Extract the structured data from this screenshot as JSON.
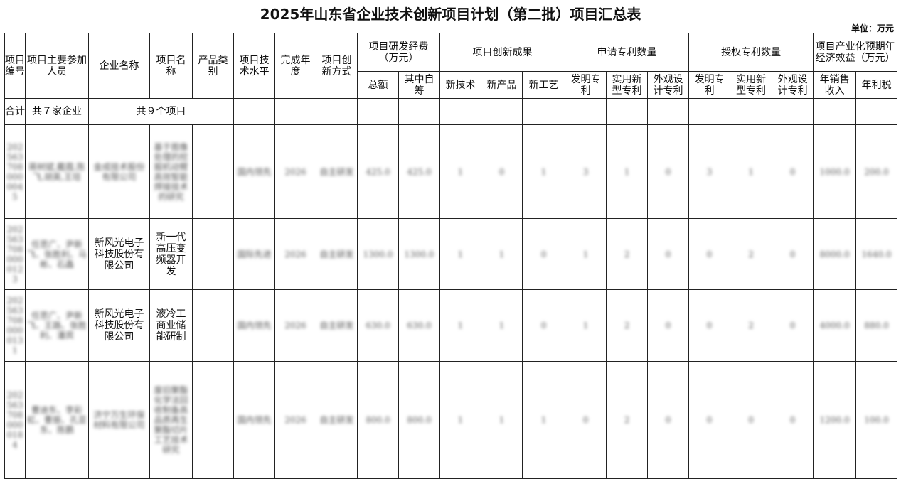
{
  "title": "2025年山东省企业技术创新项目计划（第二批）项目汇总表",
  "unit": "单位：万元",
  "headers": {
    "code": "项目编号",
    "members": "项目主要参加人员",
    "company": "企业名称",
    "project": "项目名称",
    "category": "产品类别",
    "level": "项目技术水平",
    "year": "完成年度",
    "mode": "项目创新方式",
    "funds": "项目研发经费（万元）",
    "funds_total": "总额",
    "funds_self": "其中自筹",
    "results": "项目创新成果",
    "new_tech": "新技术",
    "new_product": "新产品",
    "new_process": "新工艺",
    "applied": "申请专利数量",
    "granted": "授权专利数量",
    "invention": "发明专利",
    "utility": "实用新型专利",
    "design": "外观设计专利",
    "benefit": "项目产业化预期年经济效益（万元）",
    "sales": "年销售收入",
    "tax": "年利税"
  },
  "total_row": {
    "label": "合计",
    "companies": "共７家企业",
    "projects": "共９个项目"
  },
  "rows": [
    {
      "code": "2025637080000045",
      "members": "蒋树斌,戴霞,陈飞,胡英,王培",
      "company": "金成技术股份有限公司",
      "project": "基于图像处理的挖掘机动臂高效智能焊接技术的研究",
      "category": "",
      "level": "国内领先",
      "year": "2026",
      "mode": "自主研发",
      "total": "425.0",
      "self": "425.0",
      "tech": "1",
      "product": "0",
      "process": "1",
      "a_inv": "3",
      "a_util": "1",
      "a_des": "0",
      "g_inv": "3",
      "g_util": "1",
      "g_des": "0",
      "sales": "1000.0",
      "tax": "200.0",
      "blur": true
    },
    {
      "code": "2025637080000123",
      "members": "任思广、尹新飞、张胜利、马彬、石鑫",
      "company": "新风光电子科技股份有限公司",
      "project": "新一代高压变频器开发",
      "category": "",
      "level": "国际先进",
      "year": "2026",
      "mode": "自主研发",
      "total": "1300.0",
      "self": "1300.0",
      "tech": "1",
      "product": "1",
      "process": "0",
      "a_inv": "1",
      "a_util": "2",
      "a_des": "0",
      "g_inv": "0",
      "g_util": "2",
      "g_des": "0",
      "sales": "8000.0",
      "tax": "1640.0",
      "blur": false
    },
    {
      "code": "2025637080000131",
      "members": "任思广、尹新飞、王路、张胜利、潘宾",
      "company": "新风光电子科技股份有限公司",
      "project": "液冷工商业储能研制",
      "category": "",
      "level": "国内领先",
      "year": "2026",
      "mode": "自主研发",
      "total": "630.0",
      "self": "630.0",
      "tech": "1",
      "product": "1",
      "process": "0",
      "a_inv": "1",
      "a_util": "2",
      "a_des": "0",
      "g_inv": "0",
      "g_util": "2",
      "g_des": "0",
      "sales": "4000.0",
      "tax": "880.0",
      "blur": false
    },
    {
      "code": "2025637080000184",
      "members": "曹迪东、李彩虹、曹振、孔亚东、陈鹏",
      "company": "济宁万生环保材料有限公司",
      "project": "废旧聚酯化学法回收制备高品质再生聚酯切片工艺技术研究",
      "category": "",
      "level": "国内领先",
      "year": "2026",
      "mode": "自主研发",
      "total": "800.0",
      "self": "800.0",
      "tech": "1",
      "product": "1",
      "process": "1",
      "a_inv": "0",
      "a_util": "2",
      "a_des": "0",
      "g_inv": "0",
      "g_util": "0",
      "g_des": "0",
      "sales": "1200.0",
      "tax": "100.0",
      "blur": true
    }
  ]
}
